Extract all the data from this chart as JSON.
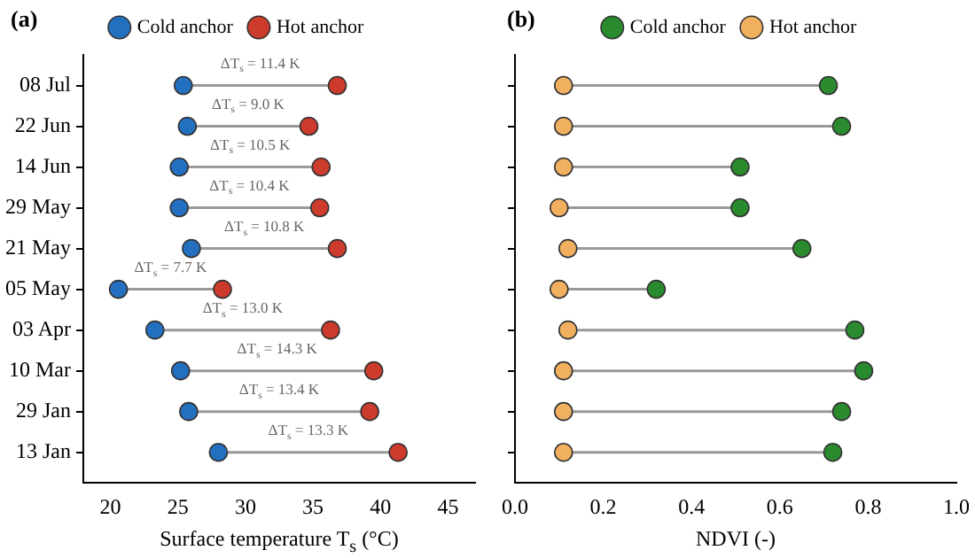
{
  "chart_data": [
    {
      "type": "scatter",
      "orientation": "horizontal",
      "title": "(a)",
      "xlabel": "Surface temperature T$_{s}$ (°C)",
      "categories": [
        "08 Jul",
        "22 Jun",
        "14 Jun",
        "29 May",
        "21 May",
        "05 May",
        "03 Apr",
        "10 Mar",
        "29 Jan",
        "13 Jan"
      ],
      "series": [
        {
          "name": "Cold anchor",
          "color": "#2470c0",
          "values": [
            25.4,
            25.7,
            25.1,
            25.1,
            26.0,
            20.6,
            23.3,
            25.2,
            25.8,
            28.0
          ]
        },
        {
          "name": "Hot anchor",
          "color": "#cc3b2c",
          "values": [
            36.8,
            34.7,
            35.6,
            35.5,
            36.8,
            28.3,
            36.3,
            39.5,
            39.2,
            41.3
          ]
        }
      ],
      "xlim": [
        18,
        47
      ],
      "xticks": [
        20,
        25,
        30,
        35,
        40,
        45
      ],
      "grid": false,
      "legend": "top",
      "marker": "circle",
      "annotations": [
        "ΔT$_{s}$ = 11.4 K",
        "ΔT$_{s}$ = 9.0 K",
        "ΔT$_{s}$ = 10.5 K",
        "ΔT$_{s}$ = 10.4 K",
        "ΔT$_{s}$ = 10.8 K",
        "ΔT$_{s}$ = 7.7 K",
        "ΔT$_{s}$ = 13.0 K",
        "ΔT$_{s}$ = 14.3 K",
        "ΔT$_{s}$ = 13.4 K",
        "ΔT$_{s}$ = 13.3 K"
      ]
    },
    {
      "type": "scatter",
      "orientation": "horizontal",
      "title": "(b)",
      "xlabel": "NDVI (-)",
      "categories": [
        null,
        null,
        null,
        null,
        null,
        null,
        null,
        null,
        null,
        null
      ],
      "series": [
        {
          "name": "Cold anchor",
          "color": "#2a8a2e",
          "values": [
            0.71,
            0.74,
            0.51,
            0.51,
            0.65,
            0.32,
            0.77,
            0.79,
            0.74,
            0.72
          ]
        },
        {
          "name": "Hot anchor",
          "color": "#f0b060",
          "values": [
            0.11,
            0.11,
            0.11,
            0.1,
            0.12,
            0.1,
            0.12,
            0.11,
            0.11,
            0.11
          ]
        }
      ],
      "xlim": [
        0,
        1
      ],
      "xticks": [
        {
          "value": 0,
          "label": "0.0"
        },
        {
          "value": 0.2,
          "label": "0.2"
        },
        {
          "value": 0.4,
          "label": "0.4"
        },
        {
          "value": 0.6,
          "label": "0.6"
        },
        {
          "value": 0.8,
          "label": "0.8"
        },
        {
          "value": 1,
          "label": "1.0"
        }
      ],
      "grid": false,
      "legend": "top",
      "marker": "circle"
    }
  ]
}
